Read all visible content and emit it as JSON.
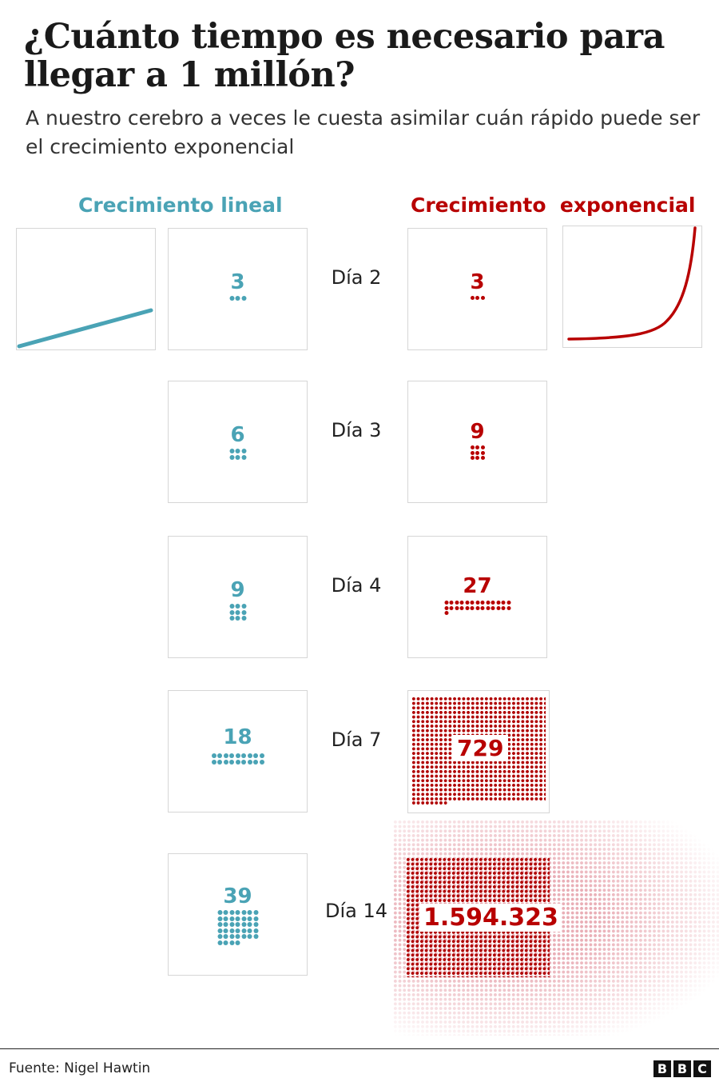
{
  "title": "¿Cuánto tiempo es necesario para llegar a 1 millón?",
  "subtitle": "A nuestro cerebro a veces le cuesta asimilar cuán rápido puede ser el crecimiento exponencial",
  "headers": {
    "linear": "Crecimiento lineal",
    "exponential": "Crecimiento  exponencial"
  },
  "colors": {
    "linear": "#4aa3b5",
    "exponential": "#b80000"
  },
  "rows": [
    {
      "day": "Día 2",
      "linear": 3,
      "linear_label": "3",
      "exponential": 3,
      "exponential_label": "3"
    },
    {
      "day": "Día 3",
      "linear": 6,
      "linear_label": "6",
      "exponential": 9,
      "exponential_label": "9"
    },
    {
      "day": "Día 4",
      "linear": 9,
      "linear_label": "9",
      "exponential": 27,
      "exponential_label": "27"
    },
    {
      "day": "Día 7",
      "linear": 18,
      "linear_label": "18",
      "exponential": 729,
      "exponential_label": "729"
    },
    {
      "day": "Día 14",
      "linear": 39,
      "linear_label": "39",
      "exponential": 1594323,
      "exponential_label": "1.594.323"
    }
  ],
  "footer": {
    "source": "Fuente: Nigel Hawtin",
    "logo": "BBC"
  }
}
